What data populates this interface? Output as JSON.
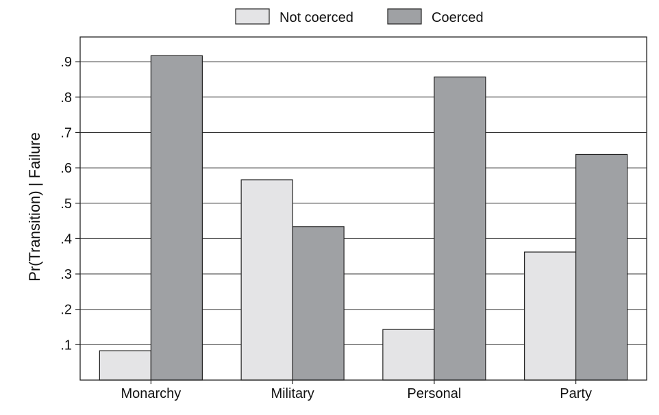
{
  "chart_data": {
    "type": "bar",
    "categories": [
      "Monarchy",
      "Military",
      "Personal",
      "Party"
    ],
    "series": [
      {
        "name": "Not coerced",
        "values": [
          0.083,
          0.566,
          0.143,
          0.362
        ],
        "color": "#e4e4e6"
      },
      {
        "name": "Coerced",
        "values": [
          0.917,
          0.434,
          0.857,
          0.638
        ],
        "color": "#9fa1a4"
      }
    ],
    "ylabel": "Pr(Transition) | Failure",
    "ylim": [
      0,
      0.97
    ],
    "yticks": [
      0.1,
      0.2,
      0.3,
      0.4,
      0.5,
      0.6,
      0.7,
      0.8,
      0.9
    ],
    "ytick_labels": [
      ".1",
      ".2",
      ".3",
      ".4",
      ".5",
      ".6",
      ".7",
      ".8",
      ".9"
    ],
    "grid": true,
    "legend_position": "top-center"
  }
}
